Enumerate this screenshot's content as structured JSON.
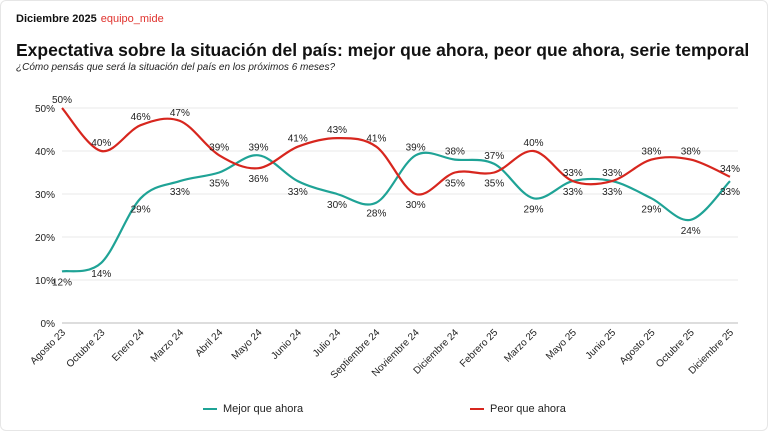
{
  "header": {
    "date": "Diciembre 2025",
    "source": "equipo_mide"
  },
  "chart_data": {
    "type": "line",
    "title": "Expectativa sobre la situación del país: mejor que ahora, peor que ahora, serie temporal",
    "subtitle": "¿Cómo pensás que será la situación del país en los próximos 6 meses?",
    "categories": [
      "Agosto 23",
      "Octubre 23",
      "Enero 24",
      "Marzo 24",
      "Abril 24",
      "Mayo 24",
      "Junio 24",
      "Julio 24",
      "Septiembre 24",
      "Noviembre 24",
      "Diciembre 24",
      "Febrero 25",
      "Marzo 25",
      "Mayo 25",
      "Junio 25",
      "Agosto 25",
      "Octubre 25",
      "Diciembre 25"
    ],
    "yticks": [
      "0%",
      "10%",
      "20%",
      "30%",
      "40%",
      "50%"
    ],
    "ylim": [
      0,
      50
    ],
    "grid": true,
    "legend": "bottom",
    "series": [
      {
        "name": "Mejor que ahora",
        "color": "#1fa396",
        "values": [
          12,
          14,
          29,
          33,
          35,
          39,
          33,
          30,
          28,
          39,
          38,
          37,
          29,
          33,
          33,
          29,
          24,
          33
        ]
      },
      {
        "name": "Peor que ahora",
        "color": "#d7261e",
        "values": [
          50,
          40,
          46,
          47,
          39,
          36,
          41,
          43,
          41,
          30,
          35,
          35,
          40,
          33,
          33,
          38,
          38,
          34
        ]
      }
    ]
  }
}
